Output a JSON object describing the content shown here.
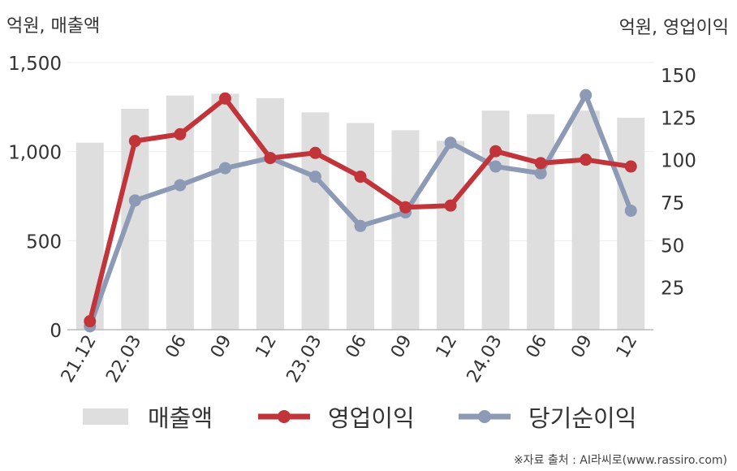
{
  "chart_data": {
    "type": "bar+line",
    "categories": [
      "21.12",
      "22.03",
      "06",
      "09",
      "12",
      "23.03",
      "06",
      "09",
      "12",
      "24.03",
      "06",
      "09",
      "12"
    ],
    "series": [
      {
        "name": "매출액",
        "kind": "bar",
        "axis": "left",
        "color": "#dedede",
        "values": [
          1050,
          1240,
          1315,
          1325,
          1300,
          1220,
          1160,
          1120,
          1060,
          1230,
          1210,
          1230,
          1190
        ]
      },
      {
        "name": "영업이익",
        "kind": "line",
        "axis": "right",
        "color": "#c1343a",
        "values": [
          5,
          111,
          115,
          136,
          101,
          104,
          90,
          72,
          73,
          105,
          98,
          100,
          96
        ]
      },
      {
        "name": "당기순이익",
        "kind": "line",
        "axis": "right",
        "color": "#8c9ab5",
        "values": [
          2,
          76,
          85,
          95,
          101,
          90,
          61,
          69,
          110,
          96,
          92,
          138,
          70
        ]
      }
    ],
    "y_left": {
      "unit_label": "억원, 매출액",
      "ylim": [
        0,
        1500
      ],
      "ticks": [
        "0",
        "500",
        "1,000",
        "1,500"
      ],
      "tick_values": [
        0,
        500,
        1000,
        1500
      ]
    },
    "y_right": {
      "unit_label": "억원, 영업이익",
      "ylim": [
        0,
        150
      ],
      "ticks": [
        "25",
        "50",
        "75",
        "100",
        "125",
        "150"
      ],
      "tick_values": [
        25,
        50,
        75,
        100,
        125,
        150
      ]
    },
    "grid": true,
    "legend_position": "bottom"
  },
  "legend": [
    {
      "label": "매출액",
      "kind": "bar",
      "color": "#dedede"
    },
    {
      "label": "영업이익",
      "kind": "line",
      "color": "#c1343a"
    },
    {
      "label": "당기순이익",
      "kind": "line",
      "color": "#8c9ab5"
    }
  ],
  "source": "※자료 출처 : AI라씨로(www.rassiro.com)"
}
